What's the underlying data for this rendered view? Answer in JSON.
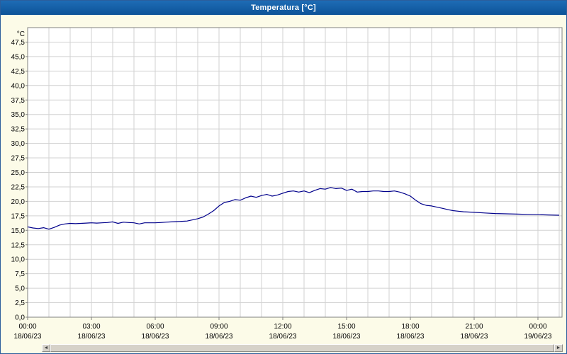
{
  "title": "Temperatura [°C]",
  "scrollbar": {
    "left_arrow": "◄",
    "right_arrow": "►"
  },
  "chart_data": {
    "type": "line",
    "title": "Temperatura [°C]",
    "ylabel": "°C",
    "xlabel": "",
    "ylim": [
      0,
      50
    ],
    "xlim_hours": [
      0,
      25.1
    ],
    "grid": true,
    "legend": "none",
    "colors": {
      "line": "#00008B",
      "grid": "#D2D2D2",
      "plot_background": "#FFFFFF",
      "window_background": "#FCFBE8",
      "titlebar": "#12599F",
      "plot_border": "#808080"
    },
    "y_ticks": [
      {
        "v": 0,
        "label": "0,0"
      },
      {
        "v": 2.5,
        "label": "2,5"
      },
      {
        "v": 5,
        "label": "5,0"
      },
      {
        "v": 7.5,
        "label": "7,5"
      },
      {
        "v": 10,
        "label": "10,0"
      },
      {
        "v": 12.5,
        "label": "12,5"
      },
      {
        "v": 15,
        "label": "15,0"
      },
      {
        "v": 17.5,
        "label": "17,5"
      },
      {
        "v": 20,
        "label": "20,0"
      },
      {
        "v": 22.5,
        "label": "22,5"
      },
      {
        "v": 25,
        "label": "25,0"
      },
      {
        "v": 27.5,
        "label": "27,5"
      },
      {
        "v": 30,
        "label": "30,0"
      },
      {
        "v": 32.5,
        "label": "32,5"
      },
      {
        "v": 35,
        "label": "35,0"
      },
      {
        "v": 37.5,
        "label": "37,5"
      },
      {
        "v": 40,
        "label": "40,0"
      },
      {
        "v": 42.5,
        "label": "42,5"
      },
      {
        "v": 45,
        "label": "45,0"
      },
      {
        "v": 47.5,
        "label": "47,5"
      }
    ],
    "x_ticks": [
      {
        "hour": 0,
        "time": "00:00",
        "date": "18/06/23"
      },
      {
        "hour": 3,
        "time": "03:00",
        "date": "18/06/23"
      },
      {
        "hour": 6,
        "time": "06:00",
        "date": "18/06/23"
      },
      {
        "hour": 9,
        "time": "09:00",
        "date": "18/06/23"
      },
      {
        "hour": 12,
        "time": "12:00",
        "date": "18/06/23"
      },
      {
        "hour": 15,
        "time": "15:00",
        "date": "18/06/23"
      },
      {
        "hour": 18,
        "time": "18:00",
        "date": "18/06/23"
      },
      {
        "hour": 21,
        "time": "21:00",
        "date": "18/06/23"
      },
      {
        "hour": 24,
        "time": "00:00",
        "date": "19/06/23"
      }
    ],
    "series": [
      {
        "name": "Temperatura",
        "color": "#00008B",
        "points": [
          [
            0,
            15.6
          ],
          [
            0.25,
            15.4
          ],
          [
            0.5,
            15.3
          ],
          [
            0.75,
            15.45
          ],
          [
            1,
            15.2
          ],
          [
            1.25,
            15.5
          ],
          [
            1.5,
            15.9
          ],
          [
            1.75,
            16.1
          ],
          [
            2,
            16.2
          ],
          [
            2.25,
            16.15
          ],
          [
            2.5,
            16.2
          ],
          [
            2.75,
            16.25
          ],
          [
            3,
            16.3
          ],
          [
            3.25,
            16.25
          ],
          [
            3.5,
            16.3
          ],
          [
            3.75,
            16.35
          ],
          [
            4,
            16.45
          ],
          [
            4.25,
            16.2
          ],
          [
            4.5,
            16.4
          ],
          [
            4.75,
            16.35
          ],
          [
            5,
            16.3
          ],
          [
            5.25,
            16.1
          ],
          [
            5.5,
            16.3
          ],
          [
            5.75,
            16.3
          ],
          [
            6,
            16.3
          ],
          [
            6.25,
            16.35
          ],
          [
            6.5,
            16.4
          ],
          [
            6.75,
            16.45
          ],
          [
            7,
            16.5
          ],
          [
            7.25,
            16.55
          ],
          [
            7.5,
            16.6
          ],
          [
            7.75,
            16.8
          ],
          [
            8,
            17.0
          ],
          [
            8.25,
            17.3
          ],
          [
            8.5,
            17.8
          ],
          [
            8.75,
            18.4
          ],
          [
            9,
            19.2
          ],
          [
            9.25,
            19.8
          ],
          [
            9.5,
            20.0
          ],
          [
            9.75,
            20.3
          ],
          [
            10,
            20.2
          ],
          [
            10.25,
            20.6
          ],
          [
            10.5,
            20.9
          ],
          [
            10.75,
            20.7
          ],
          [
            11,
            21.0
          ],
          [
            11.25,
            21.2
          ],
          [
            11.5,
            20.9
          ],
          [
            11.75,
            21.1
          ],
          [
            12,
            21.4
          ],
          [
            12.25,
            21.7
          ],
          [
            12.5,
            21.8
          ],
          [
            12.75,
            21.6
          ],
          [
            13,
            21.8
          ],
          [
            13.25,
            21.5
          ],
          [
            13.5,
            21.9
          ],
          [
            13.75,
            22.2
          ],
          [
            14,
            22.1
          ],
          [
            14.25,
            22.4
          ],
          [
            14.5,
            22.2
          ],
          [
            14.75,
            22.3
          ],
          [
            15,
            21.9
          ],
          [
            15.25,
            22.1
          ],
          [
            15.5,
            21.6
          ],
          [
            15.75,
            21.7
          ],
          [
            16,
            21.7
          ],
          [
            16.25,
            21.8
          ],
          [
            16.5,
            21.8
          ],
          [
            16.75,
            21.7
          ],
          [
            17,
            21.7
          ],
          [
            17.25,
            21.8
          ],
          [
            17.5,
            21.6
          ],
          [
            17.75,
            21.3
          ],
          [
            18,
            20.9
          ],
          [
            18.25,
            20.2
          ],
          [
            18.5,
            19.6
          ],
          [
            18.75,
            19.3
          ],
          [
            19,
            19.2
          ],
          [
            19.25,
            19.0
          ],
          [
            19.5,
            18.8
          ],
          [
            19.75,
            18.6
          ],
          [
            20,
            18.4
          ],
          [
            20.25,
            18.3
          ],
          [
            20.5,
            18.2
          ],
          [
            21,
            18.1
          ],
          [
            21.5,
            18.0
          ],
          [
            22,
            17.9
          ],
          [
            22.5,
            17.85
          ],
          [
            23,
            17.8
          ],
          [
            23.5,
            17.75
          ],
          [
            24,
            17.7
          ],
          [
            24.5,
            17.65
          ],
          [
            25,
            17.6
          ]
        ]
      }
    ]
  }
}
